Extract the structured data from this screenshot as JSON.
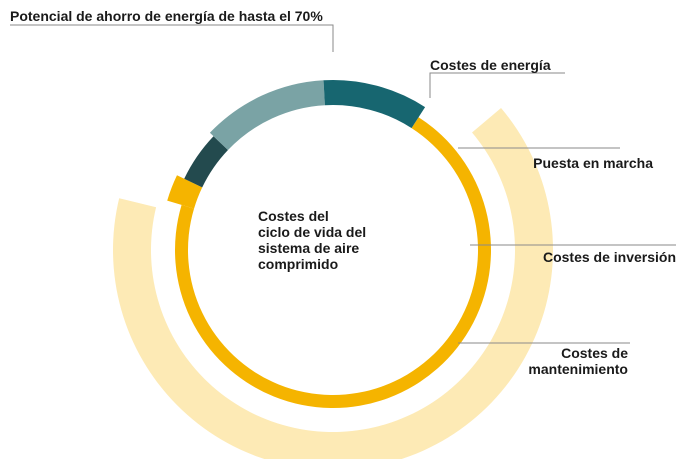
{
  "chart_data": {
    "type": "pie",
    "title": "",
    "center_label": [
      "Costes del",
      "ciclo de vida del",
      "sistema de aire",
      "comprimido"
    ],
    "annotation": "Potencial de ahorro de energía de hasta el 70%",
    "categories": [
      "Costes de energía",
      "Puesta en marcha",
      "Costes de inversión",
      "Costes de mantenimiento"
    ],
    "category_labels": [
      [
        "Costes de energía"
      ],
      [
        "Puesta en marcha"
      ],
      [
        "Costes de inversión"
      ],
      [
        "Costes de",
        "mantenimiento"
      ]
    ],
    "values": [
      73,
      5,
      12,
      10
    ],
    "colors": [
      "#F5B400",
      "#234A4E",
      "#7AA3A5",
      "#176670"
    ],
    "savings_color": "#FDEAB5",
    "leader_color": "#8A8A8A"
  }
}
